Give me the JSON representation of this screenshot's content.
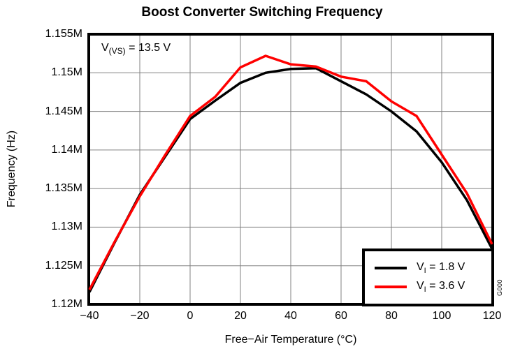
{
  "chart_data": {
    "type": "line",
    "title": "Boost Converter Switching Frequency",
    "xlabel": "Free−Air Temperature (°C)",
    "ylabel": "Frequency (Hz)",
    "annotation_text": "V(VS) = 13.5 V",
    "watermark": "G000",
    "grid": true,
    "legend_position": "bottom-right",
    "xlim": [
      -40,
      120
    ],
    "ylim": [
      1120000,
      1155000
    ],
    "xticks": [
      -40,
      -20,
      0,
      20,
      40,
      60,
      80,
      100,
      120
    ],
    "xtick_labels": [
      "−40",
      "−20",
      "0",
      "20",
      "40",
      "60",
      "80",
      "100",
      "120"
    ],
    "yticks": [
      1120000,
      1125000,
      1130000,
      1135000,
      1140000,
      1145000,
      1150000,
      1155000
    ],
    "ytick_labels": [
      "1.12M",
      "1.125M",
      "1.13M",
      "1.135M",
      "1.14M",
      "1.145M",
      "1.15M",
      "1.155M"
    ],
    "x": [
      -40,
      -30,
      -20,
      -10,
      0,
      10,
      20,
      30,
      40,
      50,
      60,
      70,
      80,
      90,
      100,
      110,
      120
    ],
    "series": [
      {
        "name": "VI = 1.8 V",
        "color": "#000000",
        "values": [
          1121600,
          1128000,
          1134200,
          1139100,
          1144000,
          1146400,
          1148700,
          1150000,
          1150500,
          1150600,
          1148900,
          1147200,
          1145000,
          1142400,
          1138400,
          1133500,
          1127200
        ]
      },
      {
        "name": "VI = 3.6 V",
        "color": "#ff0000",
        "values": [
          1121900,
          1128100,
          1134000,
          1139300,
          1144400,
          1146900,
          1150700,
          1152200,
          1151100,
          1150800,
          1149500,
          1148900,
          1146300,
          1144400,
          1139400,
          1134400,
          1127800
        ]
      }
    ]
  },
  "annotation": {
    "prefix": "V",
    "sub": "(VS)",
    "suffix": " = 13.5 V"
  },
  "legend": {
    "items": [
      {
        "prefix": "V",
        "sub": "I",
        "suffix": " = 1.8 V",
        "color": "#000000"
      },
      {
        "prefix": "V",
        "sub": "I",
        "suffix": " = 3.6 V",
        "color": "#ff0000"
      }
    ]
  },
  "colors": {
    "series_black": "#000000",
    "series_red": "#ff0000",
    "grid": "#808080",
    "border": "#000000"
  }
}
